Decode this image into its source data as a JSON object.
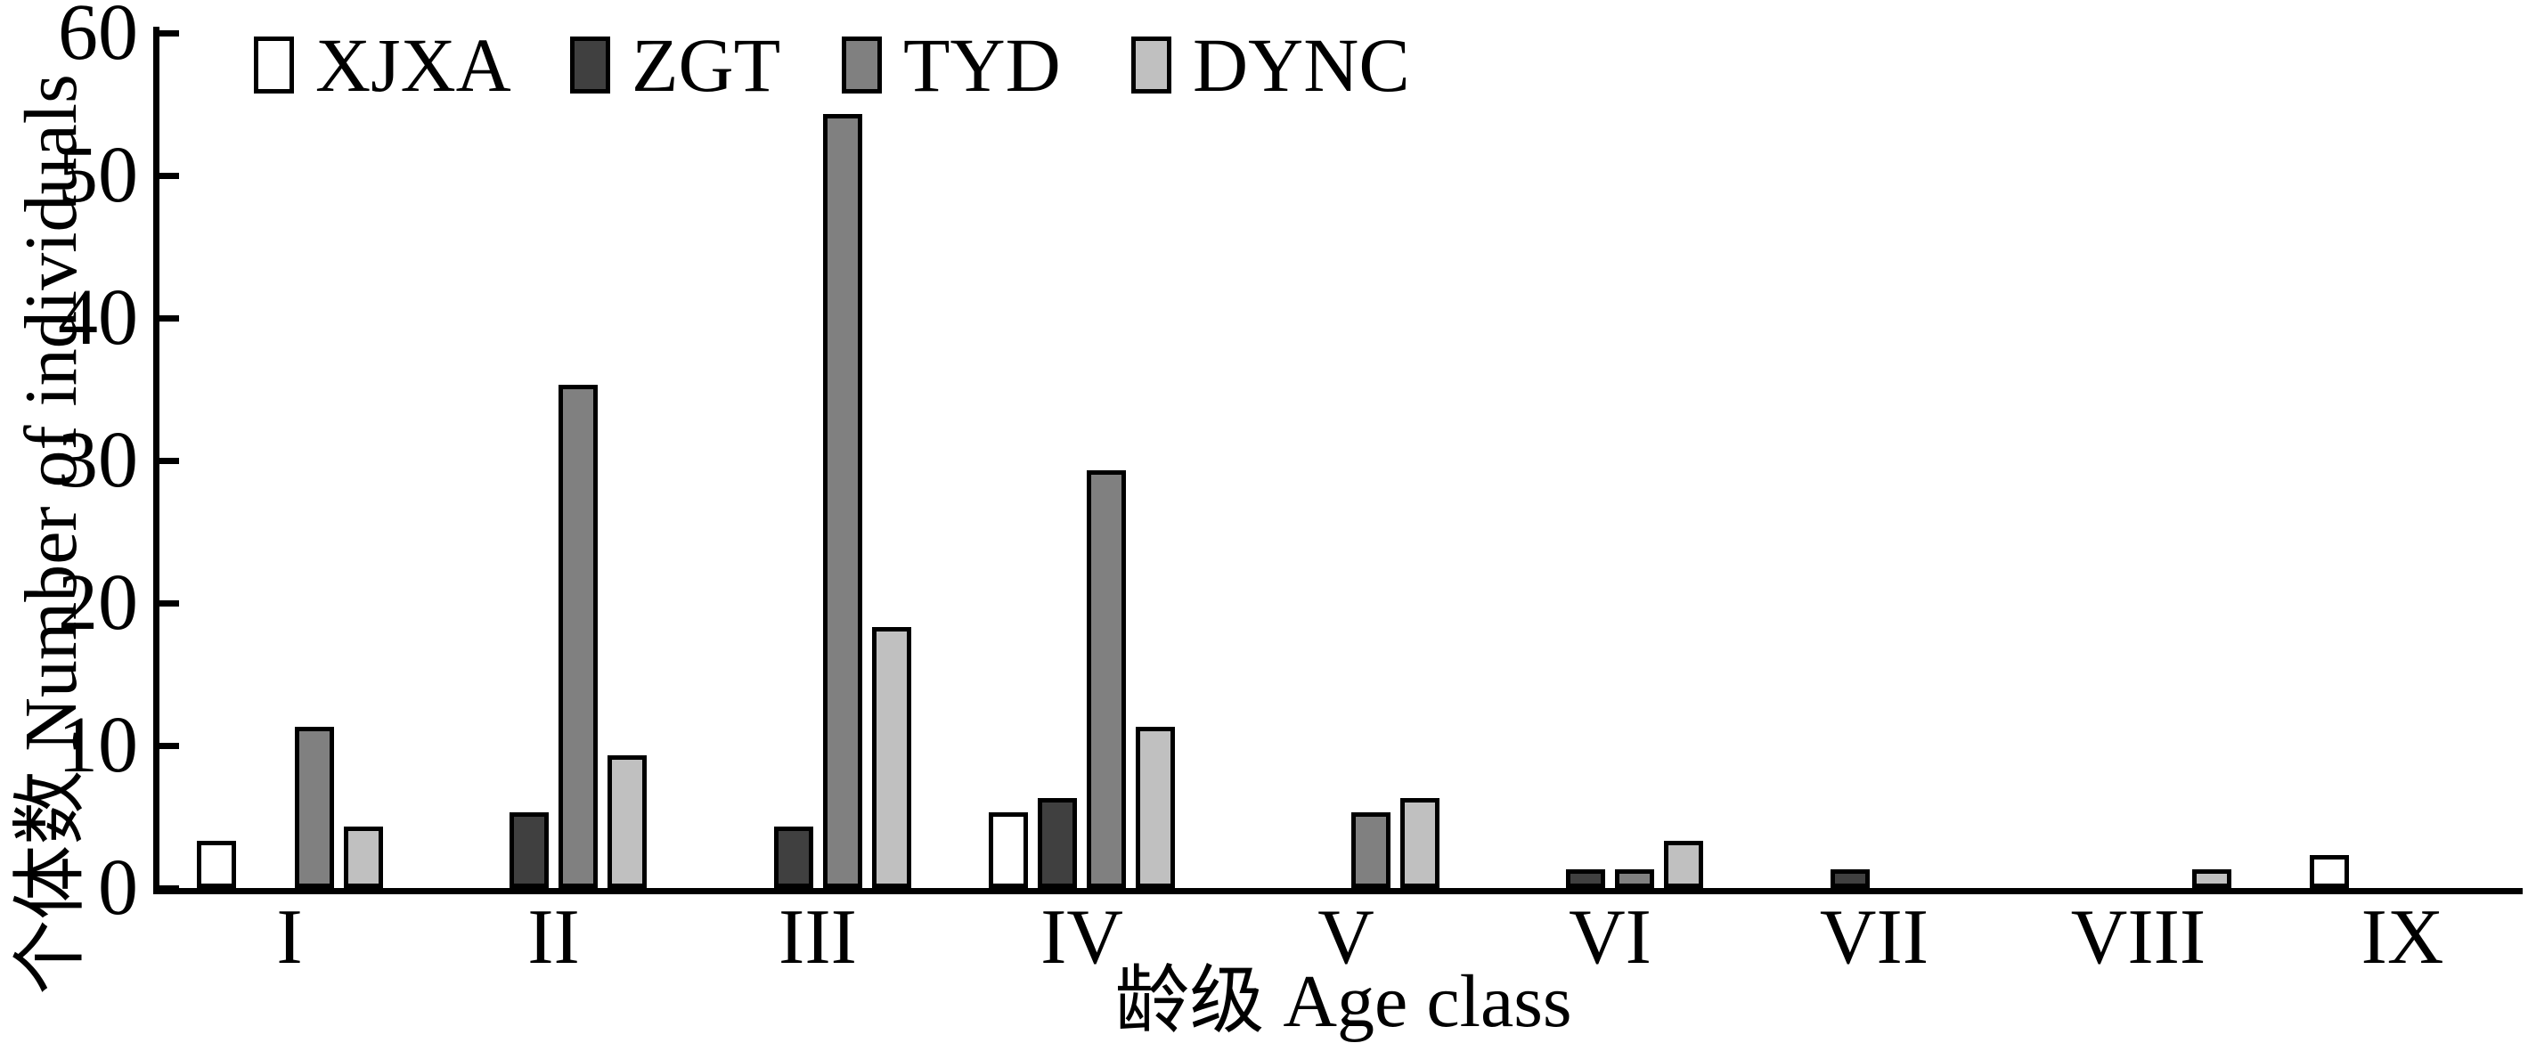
{
  "figure": {
    "background": "#ffffff",
    "axis_color": "#000000"
  },
  "chart_data": {
    "type": "bar",
    "title": "",
    "xlabel": "龄级 Age class",
    "ylabel": "个体数 Number of individuals",
    "categories": [
      "I",
      "II",
      "III",
      "IV",
      "V",
      "VI",
      "VII",
      "VIII",
      "IX"
    ],
    "series": [
      {
        "name": "XJXA",
        "color": "#ffffff",
        "values": [
          3,
          0,
          0,
          5,
          0,
          0,
          0,
          0,
          2
        ]
      },
      {
        "name": "ZGT",
        "color": "#404040",
        "values": [
          0,
          5,
          4,
          6,
          0,
          1,
          1,
          0,
          0
        ]
      },
      {
        "name": "TYD",
        "color": "#808080",
        "values": [
          11,
          35,
          54,
          29,
          5,
          1,
          0,
          0,
          0
        ]
      },
      {
        "name": "DYNC",
        "color": "#c0c0c0",
        "values": [
          4,
          9,
          18,
          11,
          6,
          3,
          0,
          1,
          0
        ]
      }
    ],
    "ylim": [
      0,
      60
    ],
    "yticks": [
      0,
      10,
      20,
      30,
      40,
      50,
      60
    ],
    "grid": false,
    "legend_position": "top-left",
    "bar_outline_color": "#000000"
  }
}
